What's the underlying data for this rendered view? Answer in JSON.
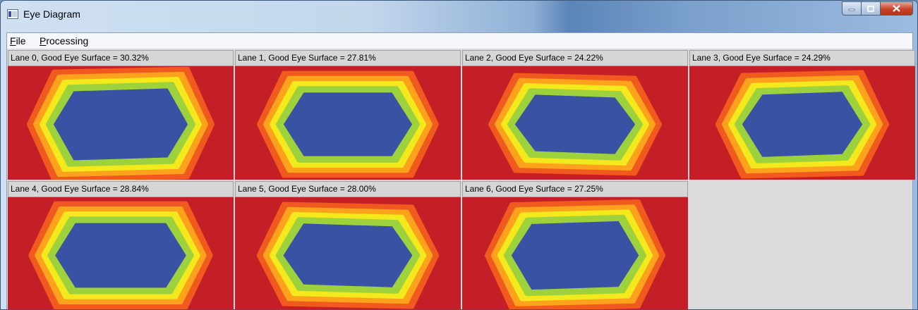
{
  "window": {
    "title": "Eye Diagram",
    "colors": {
      "eye_outer": "#c41f26",
      "eye_orange": "#f05a1e",
      "eye_amber": "#fca21d",
      "eye_yellow": "#f3e91c",
      "eye_green": "#9ed23c",
      "eye_inner": "#3a52a4"
    }
  },
  "menu": {
    "items": [
      {
        "label": "File",
        "mnemonic": "F",
        "rest": "ile"
      },
      {
        "label": "Processing",
        "mnemonic": "P",
        "rest": "rocessing"
      }
    ]
  },
  "lanes": [
    {
      "label": "Lane 0, Good Eye Surface =  30.32%",
      "surface_pct": 30.32
    },
    {
      "label": "Lane 1, Good Eye Surface =  27.81%",
      "surface_pct": 27.81
    },
    {
      "label": "Lane 2, Good Eye Surface =  24.22%",
      "surface_pct": 24.22
    },
    {
      "label": "Lane 3, Good Eye Surface =  24.29%",
      "surface_pct": 24.29
    },
    {
      "label": "Lane 4, Good Eye Surface =  28.84%",
      "surface_pct": 28.84
    },
    {
      "label": "Lane 5, Good Eye Surface =  28.00%",
      "surface_pct": 28.0
    },
    {
      "label": "Lane 6, Good Eye Surface =  27.25%",
      "surface_pct": 27.25
    }
  ]
}
